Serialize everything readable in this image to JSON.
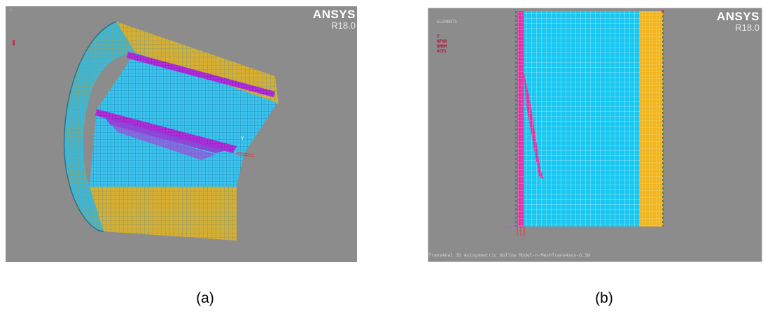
{
  "panel_a": {
    "brand_name": "ANSYS",
    "version": "R18.0",
    "caption": "(a)"
  },
  "panel_b": {
    "brand_name": "ANSYS",
    "version": "R18.0",
    "caption": "(b)",
    "legend_title": "ELEMENTS",
    "legend_items": [
      "T",
      "NFOR",
      "NMOM",
      "ACEL"
    ],
    "footer": "TransAnal 2D Axisymmetric Hollow Model-n-MeshTrans4sus-6.1W"
  },
  "colors": {
    "background": "#8c8c8c",
    "mesh_cyan": "#2bc4ee",
    "crack_magenta": "#e0309b",
    "liner_yellow": "#e6b21f",
    "boundary_purple": "#b025e0"
  }
}
